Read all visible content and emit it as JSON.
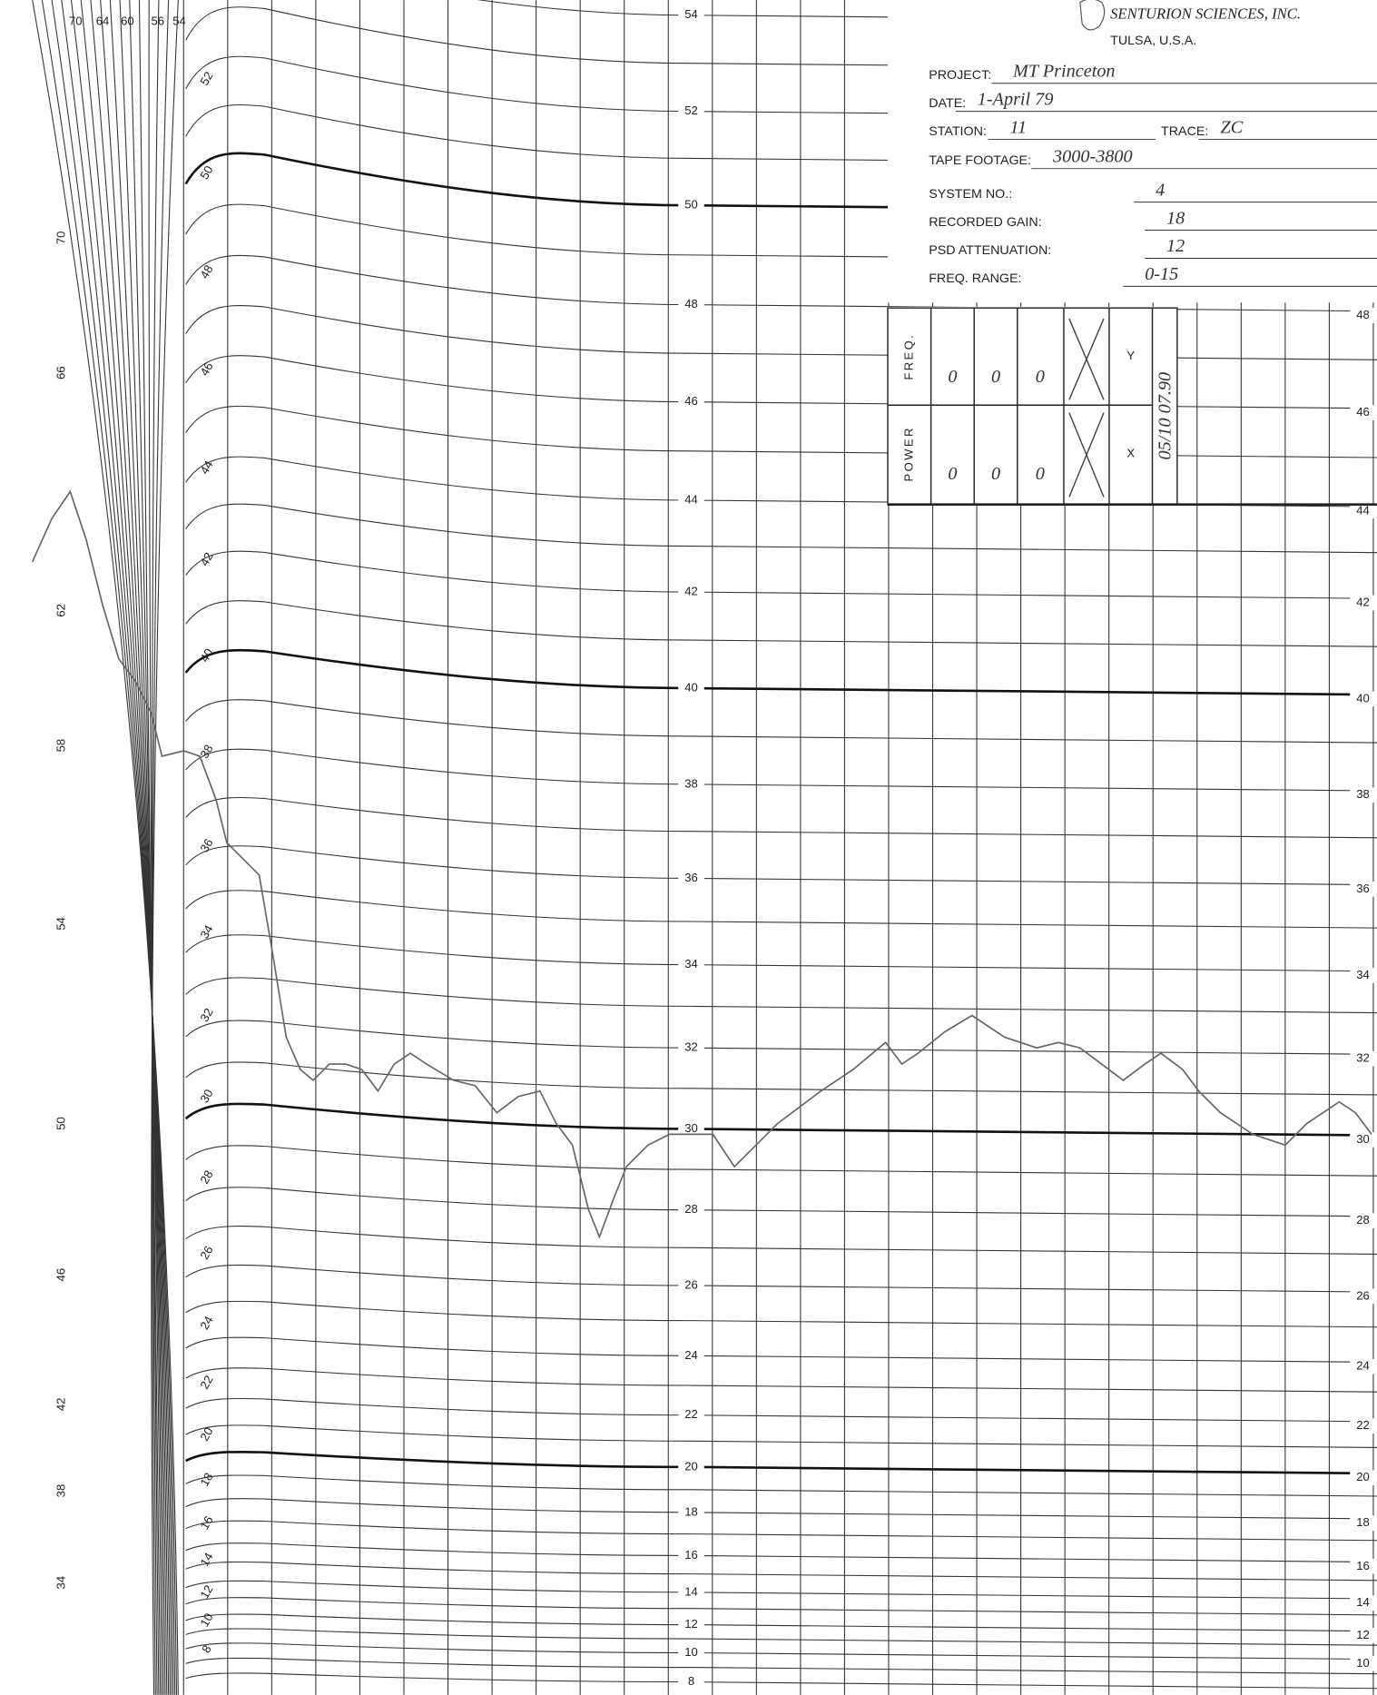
{
  "header": {
    "company": "SENTURION SCIENCES, INC.",
    "location": "TULSA, U.S.A."
  },
  "form": {
    "fields": [
      {
        "label": "PROJECT:",
        "value": "MT Princeton"
      },
      {
        "label": "DATE:",
        "value": "1-April 79"
      },
      {
        "label": "STATION:",
        "value": "11"
      },
      {
        "label": "TRACE:",
        "value": "ZC"
      },
      {
        "label": "TAPE FOOTAGE:",
        "value": "3000-3800"
      },
      {
        "label": "SYSTEM NO.:",
        "value": "4"
      },
      {
        "label": "RECORDED GAIN:",
        "value": "18"
      },
      {
        "label": "PSD ATTENUATION:",
        "value": "12"
      },
      {
        "label": "FREQ. RANGE:",
        "value": "0-15"
      }
    ]
  },
  "table": {
    "rows": [
      {
        "label": "FREQ.",
        "cells": [
          "0",
          "0",
          "0"
        ],
        "axis": "Y"
      },
      {
        "label": "POWER",
        "cells": [
          "0",
          "0",
          "0"
        ],
        "axis": "X"
      }
    ],
    "note": "05/10 07.90"
  },
  "scales": {
    "center": [
      54,
      52,
      50,
      48,
      46,
      44,
      42,
      40,
      38,
      36,
      34,
      32,
      30,
      28,
      26,
      24,
      22,
      20,
      18,
      16,
      14,
      12,
      10,
      8
    ],
    "right": [
      48,
      46,
      44,
      42,
      40,
      38,
      36,
      34,
      32,
      30,
      28,
      26,
      24,
      22,
      20,
      18,
      16,
      14,
      12,
      10
    ],
    "curve": [
      52,
      50,
      48,
      46,
      44,
      42,
      40,
      38,
      36,
      34,
      32,
      30,
      28,
      26,
      24,
      22,
      20,
      18,
      16,
      14,
      12,
      10,
      8
    ],
    "outer": [
      70,
      66,
      62,
      58,
      54,
      50,
      46,
      42,
      38,
      34
    ],
    "top": [
      70,
      64,
      60,
      56,
      54
    ]
  }
}
